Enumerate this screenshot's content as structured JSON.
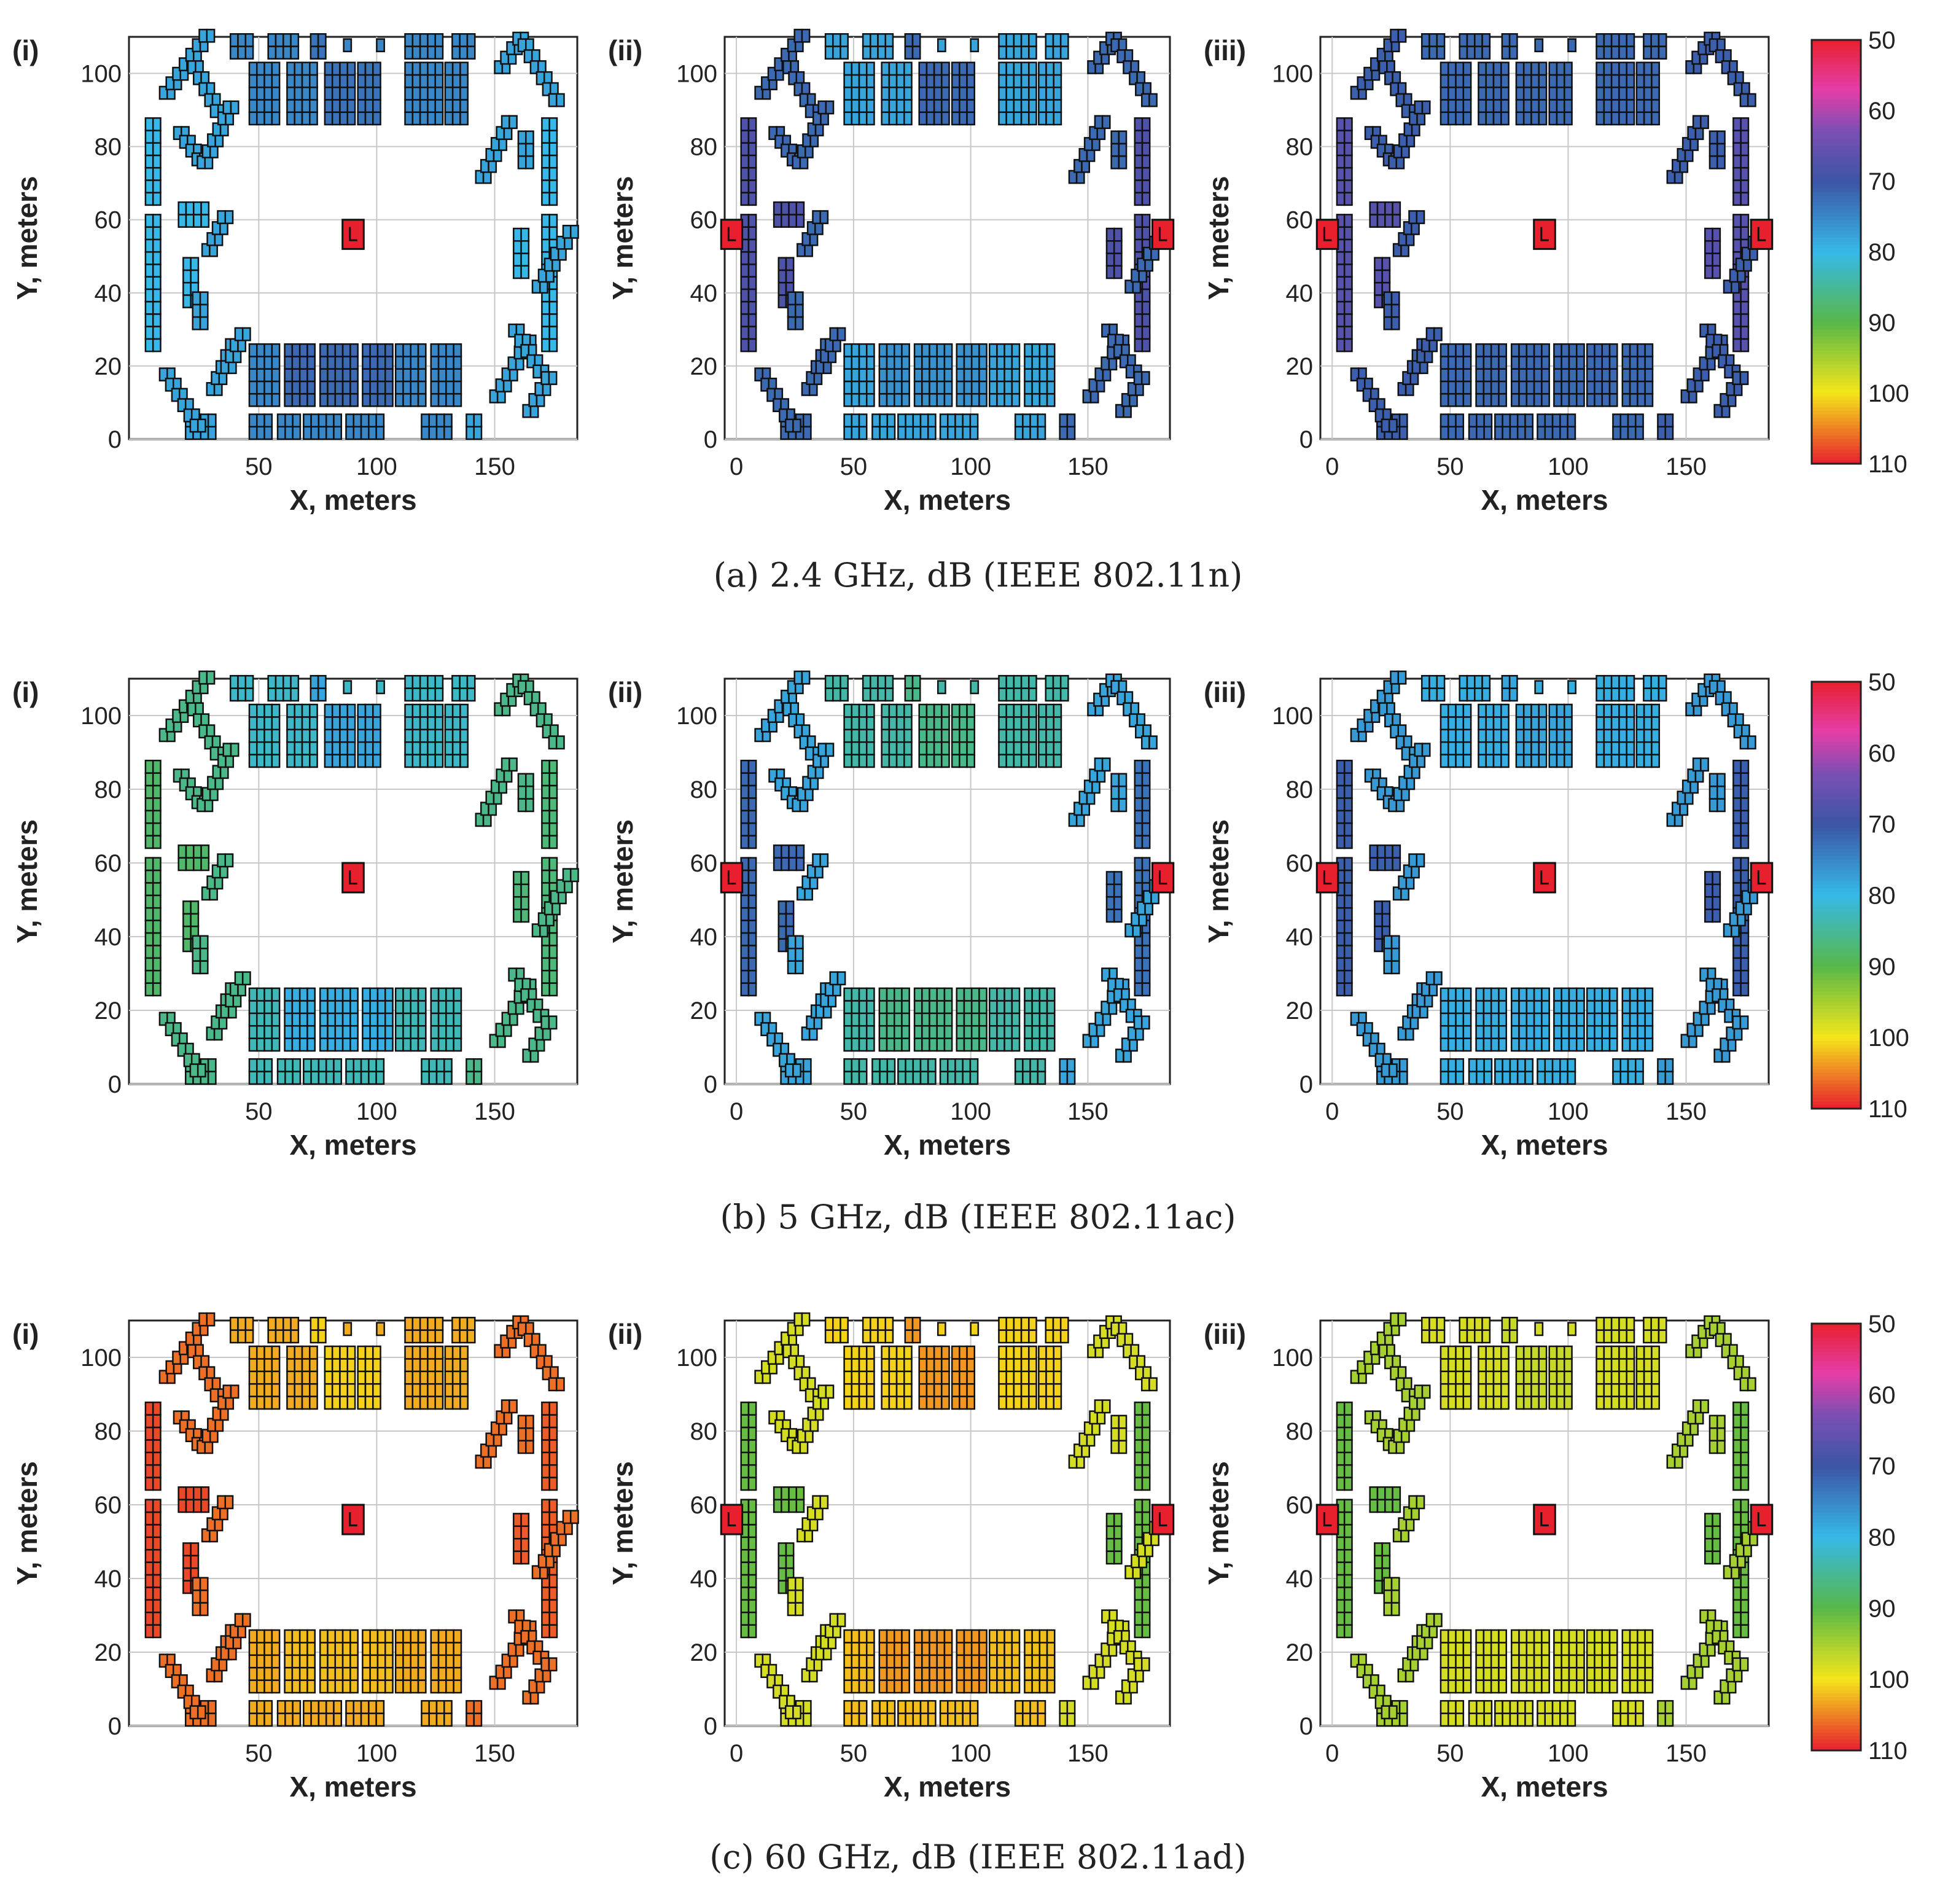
{
  "chart_data": {
    "type": "heatmap",
    "description_units": "path loss in dB over floor plan",
    "axis_labels": {
      "x": "X, meters",
      "y": "Y, meters"
    },
    "x_ticks": [
      0,
      50,
      100,
      150
    ],
    "y_ticks": [
      0,
      20,
      40,
      60,
      80,
      100
    ],
    "xlim": [
      -5,
      185
    ],
    "ylim": [
      0,
      110
    ],
    "colorbar": {
      "ticks": [
        50,
        60,
        70,
        80,
        90,
        100,
        110
      ],
      "range": [
        50,
        110
      ],
      "stops": [
        {
          "value": 50,
          "color": "#e8202e"
        },
        {
          "value": 57,
          "color": "#e63da8"
        },
        {
          "value": 63,
          "color": "#7a4fb3"
        },
        {
          "value": 70,
          "color": "#3c55a5"
        },
        {
          "value": 80,
          "color": "#36b8e8"
        },
        {
          "value": 90,
          "color": "#57b848"
        },
        {
          "value": 100,
          "color": "#f5e61a"
        },
        {
          "value": 110,
          "color": "#e8202e"
        }
      ]
    },
    "panel_labels": [
      "(i)",
      "(ii)",
      "(iii)"
    ],
    "rows": [
      {
        "caption": "(a)  2.4 GHz, dB (IEEE 802.11n)",
        "panels": [
          {
            "label": "(i)",
            "x_ticks": [
              50,
              100,
              150
            ],
            "aps": [
              [
                90,
                56
              ]
            ],
            "levels": {
              "top": 75,
              "top_inner": 73,
              "bottom": 75,
              "bottom_inner": 72,
              "left": 80,
              "right": 80,
              "left_diag": 78,
              "right_diag": 78
            }
          },
          {
            "label": "(ii)",
            "x_ticks": [
              0,
              50,
              100,
              150
            ],
            "aps": [
              [
                -2,
                56
              ],
              [
                182,
                56
              ]
            ],
            "levels": {
              "top": 78,
              "top_inner": 72,
              "bottom": 78,
              "bottom_inner": 76,
              "left": 68,
              "right": 68,
              "left_diag": 72,
              "right_diag": 72
            }
          },
          {
            "label": "(iii)",
            "x_ticks": [
              0,
              50,
              100,
              150
            ],
            "aps": [
              [
                -2,
                56
              ],
              [
                90,
                56
              ],
              [
                182,
                56
              ]
            ],
            "levels": {
              "top": 72,
              "top_inner": 72,
              "bottom": 72,
              "bottom_inner": 72,
              "left": 67,
              "right": 67,
              "left_diag": 71,
              "right_diag": 71
            }
          }
        ]
      },
      {
        "caption": "(b)  5 GHz, dB (IEEE 802.11ac)",
        "panels": [
          {
            "label": "(i)",
            "x_ticks": [
              50,
              100,
              150
            ],
            "aps": [
              [
                90,
                56
              ]
            ],
            "levels": {
              "top": 82,
              "top_inner": 78,
              "bottom": 83,
              "bottom_inner": 79,
              "left": 88,
              "right": 87,
              "left_diag": 86,
              "right_diag": 86
            }
          },
          {
            "label": "(ii)",
            "x_ticks": [
              0,
              50,
              100,
              150
            ],
            "aps": [
              [
                -2,
                56
              ],
              [
                182,
                56
              ]
            ],
            "levels": {
              "top": 84,
              "top_inner": 86,
              "bottom": 84,
              "bottom_inner": 86,
              "left": 72,
              "right": 73,
              "left_diag": 78,
              "right_diag": 78
            }
          },
          {
            "label": "(iii)",
            "x_ticks": [
              0,
              50,
              100,
              150
            ],
            "aps": [
              [
                -2,
                56
              ],
              [
                90,
                56
              ],
              [
                182,
                56
              ]
            ],
            "levels": {
              "top": 79,
              "top_inner": 78,
              "bottom": 79,
              "bottom_inner": 79,
              "left": 71,
              "right": 71,
              "left_diag": 77,
              "right_diag": 77
            }
          }
        ]
      },
      {
        "caption": "(c)  60 GHz, dB (IEEE 802.11ad)",
        "panels": [
          {
            "label": "(i)",
            "x_ticks": [
              50,
              100,
              150
            ],
            "aps": [
              [
                90,
                56
              ]
            ],
            "levels": {
              "top": 103,
              "top_inner": 101,
              "bottom": 103,
              "bottom_inner": 102,
              "left": 108,
              "right": 107,
              "left_diag": 106,
              "right_diag": 106
            }
          },
          {
            "label": "(ii)",
            "x_ticks": [
              0,
              50,
              100,
              150
            ],
            "aps": [
              [
                -2,
                56
              ],
              [
                182,
                56
              ]
            ],
            "levels": {
              "top": 101,
              "top_inner": 104,
              "bottom": 102,
              "bottom_inner": 104,
              "left": 91,
              "right": 91,
              "left_diag": 98,
              "right_diag": 98
            }
          },
          {
            "label": "(iii)",
            "x_ticks": [
              0,
              50,
              100,
              150
            ],
            "aps": [
              [
                -2,
                56
              ],
              [
                90,
                56
              ],
              [
                182,
                56
              ]
            ],
            "levels": {
              "top": 98,
              "top_inner": 97,
              "bottom": 98,
              "bottom_inner": 98,
              "left": 91,
              "right": 91,
              "left_diag": 95,
              "right_diag": 95
            }
          }
        ]
      }
    ]
  }
}
